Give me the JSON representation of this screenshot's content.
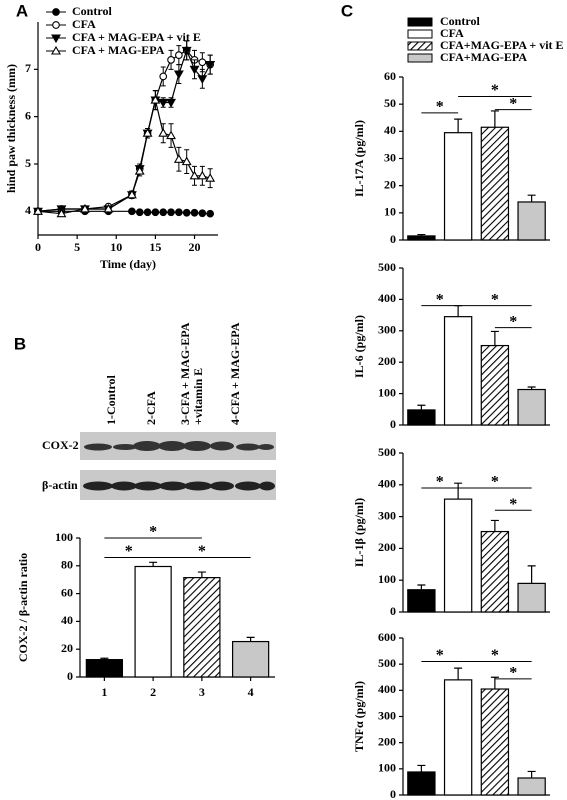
{
  "chart_data": [
    {
      "type": "line",
      "panel": "A",
      "xlabel": "Time (day)",
      "ylabel": "hind  paw thickness (mm)",
      "x": [
        0,
        3,
        6,
        9,
        12,
        13,
        14,
        15,
        16,
        17,
        18,
        19,
        20,
        21,
        22
      ],
      "xlim": [
        0,
        23
      ],
      "xticks": [
        0,
        5,
        10,
        15,
        20
      ],
      "ylim": [
        3.5,
        8
      ],
      "yticks": [
        4,
        5,
        6,
        7
      ],
      "series": [
        {
          "name": "Control",
          "color": "#000000",
          "marker": "circle",
          "filled": true,
          "values": [
            4.0,
            4.0,
            4.0,
            4.0,
            4.0,
            3.98,
            3.98,
            3.98,
            3.98,
            3.98,
            3.98,
            3.97,
            3.97,
            3.96,
            3.95
          ],
          "errors": [
            0.03,
            0.03,
            0.03,
            0.03,
            0.03,
            0.03,
            0.03,
            0.03,
            0.03,
            0.03,
            0.03,
            0.03,
            0.03,
            0.03,
            0.03
          ]
        },
        {
          "name": "CFA",
          "color": "#000000",
          "marker": "circle",
          "filled": false,
          "values": [
            4.0,
            4.05,
            4.05,
            4.1,
            4.35,
            4.9,
            5.65,
            6.35,
            6.85,
            7.2,
            7.3,
            7.4,
            7.2,
            7.15,
            7.1
          ],
          "errors": [
            0.05,
            0.05,
            0.05,
            0.05,
            0.08,
            0.1,
            0.1,
            0.2,
            0.2,
            0.2,
            0.2,
            0.2,
            0.2,
            0.2,
            0.2
          ]
        },
        {
          "name": "CFA + MAG-EPA + vit E",
          "color": "#000000",
          "marker": "down-triangle",
          "filled": true,
          "values": [
            4.0,
            4.05,
            4.05,
            4.05,
            4.35,
            4.9,
            5.65,
            6.35,
            6.3,
            6.3,
            6.9,
            7.4,
            7.0,
            6.8,
            7.1
          ],
          "errors": [
            0.05,
            0.05,
            0.05,
            0.05,
            0.08,
            0.1,
            0.1,
            0.2,
            0.1,
            0.1,
            0.2,
            0.2,
            0.2,
            0.2,
            0.2
          ]
        },
        {
          "name": "CFA + MAG-EPA",
          "color": "#000000",
          "marker": "up-triangle",
          "filled": false,
          "values": [
            4.0,
            3.95,
            4.05,
            4.05,
            4.35,
            4.85,
            5.65,
            6.35,
            5.65,
            5.6,
            5.1,
            5.05,
            4.75,
            4.75,
            4.7
          ],
          "errors": [
            0.05,
            0.05,
            0.05,
            0.05,
            0.08,
            0.1,
            0.1,
            0.2,
            0.2,
            0.25,
            0.25,
            0.25,
            0.2,
            0.2,
            0.2
          ]
        }
      ]
    },
    {
      "type": "bar",
      "panel": "B",
      "ylabel": "COX-2 / β-actin ratio",
      "blot": {
        "lanes": [
          "1-Control",
          "2-CFA",
          [
            "3-CFA + MAG-EPA",
            "+vitamin E"
          ],
          "4-CFA + MAG-EPA"
        ],
        "rows": [
          "COX-2",
          "β-actin"
        ]
      },
      "categories": [
        "1",
        "2",
        "3",
        "4"
      ],
      "values": [
        12.5,
        79.5,
        71.5,
        25.5
      ],
      "errors": [
        1,
        3,
        4,
        3
      ],
      "colors": [
        "#000000",
        "#ffffff",
        "#ffffff",
        "#c8c8c8"
      ],
      "hatched": [
        false,
        false,
        true,
        false
      ],
      "ylim": [
        0,
        100
      ],
      "yticks": [
        0,
        20,
        40,
        60,
        80,
        100
      ],
      "stars": [
        "*",
        "*",
        "*"
      ]
    },
    {
      "type": "bar",
      "panel": "C",
      "ylabel": "IL-17A (pg/ml)",
      "legend": [
        "Control",
        "CFA",
        "CFA+MAG-EPA + vit E",
        "CFA+MAG-EPA"
      ],
      "categories": [
        null,
        null,
        null,
        null
      ],
      "values": [
        1.5,
        39.5,
        41.5,
        14
      ],
      "errors": [
        0.5,
        5,
        6,
        2.5
      ],
      "colors": [
        "#000000",
        "#ffffff",
        "#ffffff",
        "#c8c8c8"
      ],
      "hatched": [
        false,
        false,
        true,
        false
      ],
      "ylim": [
        0,
        60
      ],
      "yticks": [
        0,
        10,
        20,
        30,
        40,
        50,
        60
      ],
      "stars": [
        "*",
        "*",
        "*"
      ]
    },
    {
      "type": "bar",
      "ylabel": "IL-6 (pg/ml)",
      "categories": [
        null,
        null,
        null,
        null
      ],
      "values": [
        48,
        345,
        253,
        113
      ],
      "errors": [
        15,
        35,
        45,
        8
      ],
      "colors": [
        "#000000",
        "#ffffff",
        "#ffffff",
        "#c8c8c8"
      ],
      "hatched": [
        false,
        false,
        true,
        false
      ],
      "ylim": [
        0,
        500
      ],
      "yticks": [
        0,
        100,
        200,
        300,
        400,
        500
      ],
      "stars": [
        "*",
        "*",
        "*"
      ]
    },
    {
      "type": "bar",
      "ylabel": "IL-1β (pg/ml)",
      "categories": [
        null,
        null,
        null,
        null
      ],
      "values": [
        70,
        355,
        253,
        90
      ],
      "errors": [
        15,
        50,
        35,
        55
      ],
      "colors": [
        "#000000",
        "#ffffff",
        "#ffffff",
        "#c8c8c8"
      ],
      "hatched": [
        false,
        false,
        true,
        false
      ],
      "ylim": [
        0,
        500
      ],
      "yticks": [
        0,
        100,
        200,
        300,
        400,
        500
      ],
      "stars": [
        "*",
        "*",
        "*"
      ]
    },
    {
      "type": "bar",
      "ylabel": "TNFα (pg/ml)",
      "categories": [
        null,
        null,
        null,
        null
      ],
      "values": [
        88,
        440,
        405,
        65
      ],
      "errors": [
        25,
        45,
        45,
        25
      ],
      "colors": [
        "#000000",
        "#ffffff",
        "#ffffff",
        "#c8c8c8"
      ],
      "hatched": [
        false,
        false,
        true,
        false
      ],
      "ylim": [
        0,
        600
      ],
      "yticks": [
        0,
        100,
        200,
        300,
        400,
        500,
        600
      ],
      "stars": [
        "*",
        "*",
        "*"
      ]
    }
  ]
}
